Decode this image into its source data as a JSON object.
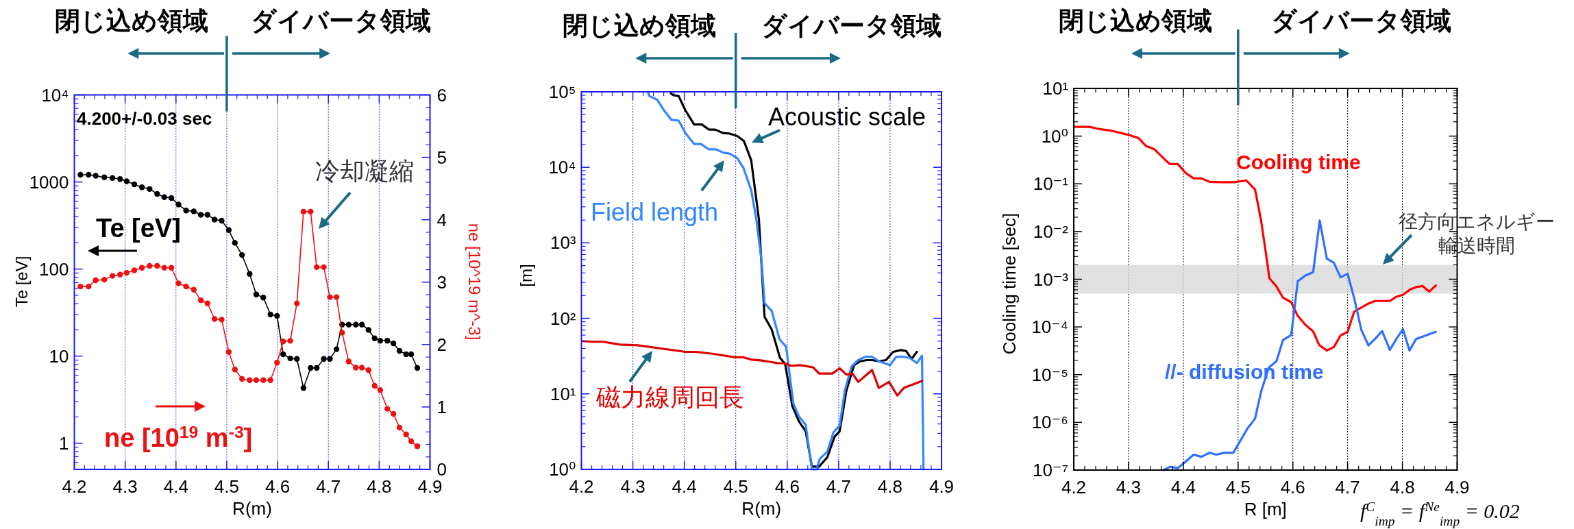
{
  "chart_data": [
    {
      "type": "line",
      "xlabel": "R(m)",
      "ylabel": "Te [eV]",
      "y2label": "ne [10^19 m^-3]",
      "log": "y",
      "grid": "x",
      "marker": "circle",
      "xlim": [
        4.2,
        4.9
      ],
      "xticks": [
        4.2,
        4.3,
        4.4,
        4.5,
        4.6,
        4.7,
        4.8,
        4.9
      ],
      "ylim": [
        0.5,
        10000
      ],
      "yticks": [
        1,
        10,
        100,
        1000,
        {
          "value": 10000,
          "label": "10⁴"
        }
      ],
      "y2lim": [
        0,
        6
      ],
      "y2ticks": [
        0,
        1,
        2,
        3,
        4,
        5,
        6
      ],
      "annotations": [
        "閉じ込め領域",
        "ダイバータ領域",
        "4.200+/-0.03 sec",
        "冷却凝縮"
      ],
      "x": [
        4.212,
        4.228,
        4.242,
        4.259,
        4.275,
        4.29,
        4.303,
        4.318,
        4.333,
        4.348,
        4.363,
        4.377,
        4.391,
        4.405,
        4.42,
        4.435,
        4.449,
        4.462,
        4.476,
        4.49,
        4.504,
        4.516,
        4.53,
        4.545,
        4.558,
        4.572,
        4.586,
        4.599,
        4.611,
        4.625,
        4.638,
        4.651,
        4.665,
        4.677,
        4.691,
        4.703,
        4.716,
        4.727,
        4.74,
        4.754,
        4.766,
        4.779,
        4.791,
        4.802,
        4.816,
        4.828,
        4.84,
        4.853,
        4.863,
        4.875
      ],
      "series": [
        {
          "name": "Te [eV]",
          "color": "#000000",
          "values": [
            1210,
            1210,
            1180,
            1130,
            1110,
            1080,
            1020,
            940,
            870,
            830,
            730,
            670,
            655,
            550,
            470,
            460,
            420,
            420,
            370,
            360,
            280,
            200,
            145,
            88,
            51,
            47,
            30,
            29,
            10.5,
            9.4,
            9.3,
            4.3,
            7.3,
            7.3,
            9.3,
            9.3,
            12,
            23,
            23,
            23,
            23,
            20,
            16,
            15,
            15,
            14,
            11.5,
            10.5,
            10.5,
            7.3
          ]
        },
        {
          "name": "ne [10$^{19}$ m$^{-3}$]",
          "color": "#ee1111",
          "axis": "y2",
          "values": [
            2.93,
            2.93,
            3.03,
            3.04,
            3.1,
            3.12,
            3.15,
            3.19,
            3.23,
            3.26,
            3.26,
            3.23,
            3.23,
            2.98,
            2.93,
            2.88,
            2.71,
            2.66,
            2.41,
            2.4,
            1.88,
            1.6,
            1.45,
            1.43,
            1.43,
            1.43,
            1.43,
            1.71,
            2.05,
            2.06,
            2.66,
            4.13,
            4.13,
            3.24,
            3.24,
            2.76,
            2.76,
            2.19,
            1.73,
            1.63,
            1.63,
            1.59,
            1.34,
            1.27,
            0.97,
            0.89,
            0.67,
            0.56,
            0.45,
            0.37
          ]
        }
      ]
    },
    {
      "type": "line",
      "xlabel": "R(m)",
      "ylabel": "[m]",
      "log": true,
      "grid": "x",
      "xlim": [
        4.2,
        4.9
      ],
      "xticks": [
        4.2,
        4.3,
        4.4,
        4.5,
        4.6,
        4.7,
        4.8,
        4.9
      ],
      "ylim": [
        1,
        100000
      ],
      "yticks": [
        {
          "value": 1,
          "label": "10⁰"
        },
        {
          "value": 10,
          "label": "10¹"
        },
        {
          "value": 100,
          "label": "10²"
        },
        {
          "value": 1000,
          "label": "10³"
        },
        {
          "value": 10000,
          "label": "10⁴"
        },
        {
          "value": 100000,
          "label": "10⁵"
        }
      ],
      "annotations": [
        "閉じ込め領域",
        "ダイバータ領域"
      ],
      "series": [
        {
          "name": "Acoustic scale",
          "color": "#000000",
          "x": [
            4.374,
            4.379,
            4.389,
            4.402,
            4.419,
            4.434,
            4.448,
            4.46,
            4.475,
            4.488,
            4.503,
            4.516,
            4.53,
            4.545,
            4.556,
            4.57,
            4.586,
            4.596,
            4.61,
            4.623,
            4.636,
            4.648,
            4.662,
            4.678,
            4.692,
            4.702,
            4.715,
            4.73,
            4.742,
            4.755,
            4.765,
            4.778,
            4.792,
            4.806,
            4.821,
            4.831,
            4.842,
            4.852
          ],
          "values": [
            95000,
            90000,
            88000,
            57000,
            37000,
            37000,
            31600,
            31600,
            28500,
            28000,
            26000,
            22200,
            12400,
            2050,
            105,
            71,
            30,
            25,
            6.9,
            4.3,
            3.2,
            1.09,
            1.09,
            1.45,
            2.7,
            3.2,
            11,
            24,
            27,
            28,
            28,
            27,
            28,
            36,
            38,
            37,
            29,
            36
          ]
        },
        {
          "name": "Field length",
          "color": "#3385ff",
          "x": [
            4.329,
            4.332,
            4.347,
            4.362,
            4.375,
            4.389,
            4.403,
            4.419,
            4.432,
            4.448,
            4.462,
            4.476,
            4.488,
            4.503,
            4.515,
            4.53,
            4.54,
            4.55,
            4.556,
            4.57,
            4.585,
            4.598,
            4.612,
            4.623,
            4.636,
            4.648,
            4.657,
            4.663,
            4.678,
            4.69,
            4.702,
            4.712,
            4.725,
            4.738,
            4.752,
            4.765,
            4.778,
            4.788,
            4.8,
            4.812,
            4.825,
            4.838,
            4.852,
            4.862,
            4.865
          ],
          "values": [
            100000,
            88000,
            79000,
            55000,
            42500,
            41600,
            28000,
            20400,
            20400,
            17300,
            17300,
            15600,
            15200,
            13200,
            9800,
            5000,
            2050,
            590,
            159,
            125,
            53,
            42,
            7.4,
            5.0,
            3.9,
            1.0,
            1.0,
            1.37,
            1.72,
            3.1,
            3.8,
            11,
            23,
            28,
            31,
            31,
            27,
            25.6,
            24,
            31,
            31,
            30,
            25.6,
            32,
            1.0
          ]
        },
        {
          "name": "磁力線周回長",
          "color": "#dd0000",
          "x": [
            4.2,
            4.222,
            4.242,
            4.275,
            4.309,
            4.342,
            4.402,
            4.422,
            4.455,
            4.498,
            4.515,
            4.53,
            4.548,
            4.582,
            4.595,
            4.608,
            4.625,
            4.65,
            4.662,
            4.688,
            4.702,
            4.715,
            4.727,
            4.738,
            4.765,
            4.778,
            4.798,
            4.814,
            4.827,
            4.862
          ],
          "values": [
            50,
            49,
            49,
            45,
            44,
            41,
            36,
            36,
            34,
            30.5,
            30.5,
            28.4,
            27.8,
            25.5,
            25.5,
            23.5,
            24,
            22.5,
            18.6,
            18.6,
            21.8,
            18,
            18.6,
            14.4,
            20.7,
            12,
            14.4,
            9.5,
            12,
            14.8
          ]
        }
      ]
    },
    {
      "type": "line",
      "xlabel": "R [m]",
      "ylabel": "Cooling time [sec]",
      "log": true,
      "grid": "x",
      "xlim": [
        4.2,
        4.9
      ],
      "xticks": [
        4.2,
        4.3,
        4.4,
        4.5,
        4.6,
        4.7,
        4.8,
        4.9
      ],
      "ylim": [
        1e-07,
        10
      ],
      "yticks": [
        {
          "value": 1e-07,
          "label": "10⁻⁷"
        },
        {
          "value": 1e-06,
          "label": "10⁻⁶"
        },
        {
          "value": 1e-05,
          "label": "10⁻⁵"
        },
        {
          "value": 0.0001,
          "label": "10⁻⁴"
        },
        {
          "value": 0.001,
          "label": "10⁻³"
        },
        {
          "value": 0.01,
          "label": "10⁻²"
        },
        {
          "value": 0.1,
          "label": "10⁻¹"
        },
        {
          "value": 1,
          "label": "10⁰"
        },
        {
          "value": 10,
          "label": "10¹"
        }
      ],
      "annotations": [
        "閉じ込め領域",
        "ダイバータ領域",
        "f$^{C}$$_{imp}$ = f$^{Ne}$$_{imp}$ = 0.02"
      ],
      "bands": [
        {
          "axis": "y",
          "from": 0.0005,
          "to": 0.002,
          "label": "径方向エネルギー輸送時間",
          "color": "#d9d9d9"
        }
      ],
      "series": [
        {
          "name": "Cooling time",
          "color": "#ff0000",
          "x": [
            4.2,
            4.229,
            4.243,
            4.27,
            4.299,
            4.318,
            4.332,
            4.347,
            4.375,
            4.39,
            4.404,
            4.419,
            4.433,
            4.448,
            4.472,
            4.493,
            4.515,
            4.531,
            4.542,
            4.554,
            4.557,
            4.57,
            4.582,
            4.597,
            4.609,
            4.623,
            4.637,
            4.648,
            4.662,
            4.675,
            4.687,
            4.7,
            4.712,
            4.724,
            4.738,
            4.75,
            4.777,
            4.789,
            4.801,
            4.814,
            4.826,
            4.837,
            4.849,
            4.861
          ],
          "values": [
            1.56,
            1.56,
            1.43,
            1.29,
            1.07,
            0.91,
            0.62,
            0.53,
            0.26,
            0.26,
            0.17,
            0.13,
            0.13,
            0.11,
            0.108,
            0.108,
            0.118,
            0.076,
            0.017,
            0.00196,
            0.00105,
            0.00071,
            0.00041,
            0.00033,
            0.00017,
            0.00011,
            8.1e-05,
            4.2e-05,
            3.2e-05,
            3.8e-05,
            6.6e-05,
            7.9e-05,
            0.00021,
            0.00025,
            0.00031,
            0.00035,
            0.00035,
            0.00043,
            0.00047,
            0.00061,
            0.00069,
            0.00072,
            0.00055,
            0.00074
          ]
        },
        {
          "name": "//- diffusion time",
          "color": "#2f6fff",
          "x": [
            4.364,
            4.376,
            4.39,
            4.404,
            4.419,
            4.433,
            4.448,
            4.46,
            4.474,
            4.491,
            4.503,
            4.517,
            4.531,
            4.542,
            4.556,
            4.57,
            4.582,
            4.597,
            4.609,
            4.623,
            4.637,
            4.649,
            4.662,
            4.675,
            4.687,
            4.7,
            4.712,
            4.725,
            4.738,
            4.75,
            4.763,
            4.777,
            4.789,
            4.801,
            4.813,
            4.825,
            4.861
          ],
          "values": [
            1e-07,
            1.17e-07,
            1.1e-07,
            1.5e-07,
            2.1e-07,
            1.9e-07,
            2.3e-07,
            2.1e-07,
            2.3e-07,
            2.3e-07,
            3.9e-07,
            7.4e-07,
            1.2e-06,
            4.4e-06,
            1.4e-05,
            1.9e-05,
            5.3e-05,
            6.8e-05,
            0.00091,
            0.0012,
            0.0014,
            0.017,
            0.0027,
            0.0022,
            0.0011,
            0.0013,
            0.0004,
            8.7e-05,
            4.1e-05,
            5.6e-05,
            8.2e-05,
            3.3e-05,
            5.6e-05,
            9e-05,
            3.2e-05,
            5.6e-05,
            7.9e-05
          ]
        }
      ]
    }
  ]
}
